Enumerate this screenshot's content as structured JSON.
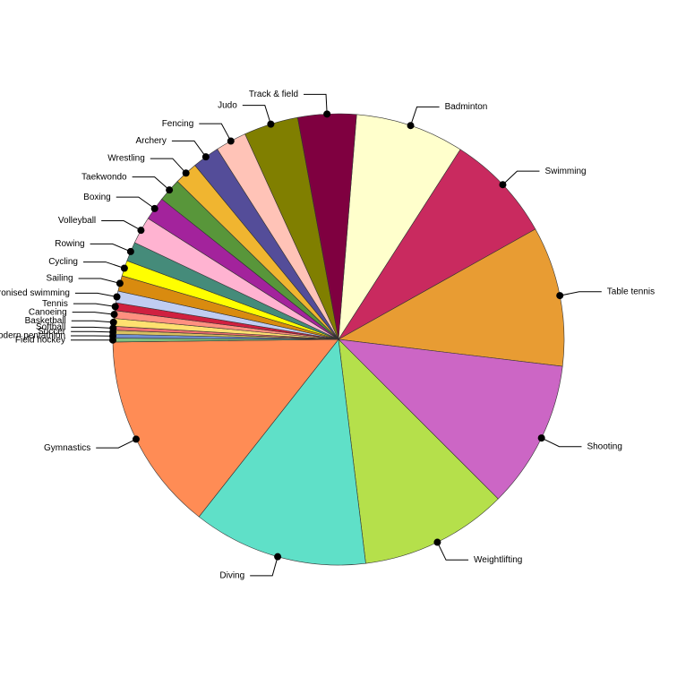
{
  "chart_data": {
    "type": "pie",
    "categories": [
      "Badminton",
      "Swimming",
      "Table tennis",
      "Shooting",
      "Weightlifting",
      "Diving",
      "Gymnastics",
      "Field hockey",
      "Modern pentathlon",
      "Soccer",
      "Softball",
      "Basketball",
      "Canoeing",
      "Tennis",
      "Synchronised swimming",
      "Sailing",
      "Cycling",
      "Rowing",
      "Volleyball",
      "Boxing",
      "Taekwondo",
      "Wrestling",
      "Archery",
      "Fencing",
      "Judo",
      "Track & field"
    ],
    "values": [
      28,
      28,
      36,
      38,
      38,
      45,
      51,
      1,
      1,
      1,
      1,
      2,
      2,
      2,
      3,
      4,
      4,
      5,
      7,
      6,
      6,
      6,
      7,
      8,
      14,
      15
    ],
    "colors": [
      "#ffffcc",
      "#c92a5f",
      "#e89c33",
      "#cc66c5",
      "#b5e04b",
      "#5fe0c8",
      "#ff8c55",
      "#7fbf7f",
      "#6f8fcf",
      "#d8c060",
      "#f07070",
      "#ffe070",
      "#ff9080",
      "#d02040",
      "#c0cdf2",
      "#d98b0f",
      "#ffff00",
      "#458b7a",
      "#ffb3d1",
      "#a3239c",
      "#58963a",
      "#f0b530",
      "#544d99",
      "#ffc3b7",
      "#807f00",
      "#7f0040"
    ]
  }
}
